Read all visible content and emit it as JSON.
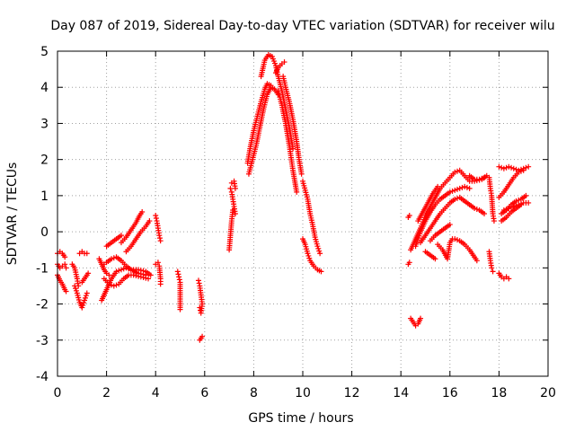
{
  "chart_data": {
    "type": "scatter",
    "title": "Day 087 of 2019, Sidereal Day-to-day VTEC variation (SDTVAR) for receiver wilu",
    "xlabel": "GPS time / hours",
    "ylabel": "SDTVAR / TECUs",
    "xlim": [
      0,
      20
    ],
    "ylim": [
      -4,
      5
    ],
    "xticks": [
      0,
      2,
      4,
      6,
      8,
      10,
      12,
      14,
      16,
      18,
      20
    ],
    "yticks": [
      -4,
      -3,
      -2,
      -1,
      0,
      1,
      2,
      3,
      4,
      5
    ],
    "grid": true,
    "marker": "+",
    "series_color": "#ff0000",
    "segments": [
      [
        [
          0.0,
          -0.6
        ],
        [
          0.1,
          -0.55
        ],
        [
          0.2,
          -0.6
        ],
        [
          0.3,
          -0.7
        ]
      ],
      [
        [
          0.0,
          -0.9
        ],
        [
          0.1,
          -1.0
        ],
        [
          0.2,
          -0.95
        ],
        [
          0.3,
          -0.9
        ],
        [
          0.35,
          -1.0
        ]
      ],
      [
        [
          0.0,
          -1.2
        ],
        [
          0.1,
          -1.35
        ],
        [
          0.2,
          -1.45
        ],
        [
          0.3,
          -1.6
        ],
        [
          0.35,
          -1.65
        ]
      ],
      [
        [
          0.6,
          -0.9
        ],
        [
          0.7,
          -1.0
        ],
        [
          0.8,
          -1.3
        ],
        [
          0.85,
          -1.5
        ]
      ],
      [
        [
          0.7,
          -1.5
        ],
        [
          0.8,
          -1.7
        ],
        [
          0.9,
          -1.95
        ],
        [
          1.0,
          -2.1
        ],
        [
          1.1,
          -1.9
        ],
        [
          1.2,
          -1.7
        ]
      ],
      [
        [
          0.9,
          -0.6
        ],
        [
          1.0,
          -0.55
        ],
        [
          1.1,
          -0.6
        ],
        [
          1.2,
          -0.6
        ]
      ],
      [
        [
          1.0,
          -1.4
        ],
        [
          1.1,
          -1.3
        ],
        [
          1.2,
          -1.2
        ],
        [
          1.25,
          -1.15
        ]
      ],
      [
        [
          1.7,
          -0.75
        ],
        [
          1.8,
          -0.9
        ],
        [
          1.9,
          -1.05
        ],
        [
          2.0,
          -1.15
        ],
        [
          2.1,
          -1.2
        ]
      ],
      [
        [
          1.8,
          -1.9
        ],
        [
          1.9,
          -1.75
        ],
        [
          2.0,
          -1.6
        ],
        [
          2.2,
          -1.3
        ],
        [
          2.4,
          -1.1
        ],
        [
          2.6,
          -1.05
        ],
        [
          2.8,
          -1.0
        ],
        [
          3.0,
          -1.05
        ],
        [
          3.3,
          -1.05
        ],
        [
          3.6,
          -1.1
        ],
        [
          3.8,
          -1.2
        ]
      ],
      [
        [
          1.9,
          -0.9
        ],
        [
          2.0,
          -0.85
        ],
        [
          2.2,
          -0.75
        ],
        [
          2.4,
          -0.7
        ],
        [
          2.6,
          -0.8
        ],
        [
          2.8,
          -0.95
        ],
        [
          3.0,
          -1.05
        ],
        [
          3.3,
          -1.15
        ],
        [
          3.6,
          -1.2
        ]
      ],
      [
        [
          2.0,
          -0.4
        ],
        [
          2.2,
          -0.3
        ],
        [
          2.4,
          -0.2
        ],
        [
          2.6,
          -0.1
        ]
      ],
      [
        [
          1.9,
          -1.3
        ],
        [
          2.1,
          -1.45
        ],
        [
          2.3,
          -1.5
        ],
        [
          2.5,
          -1.45
        ],
        [
          2.7,
          -1.3
        ],
        [
          2.9,
          -1.2
        ],
        [
          3.1,
          -1.2
        ],
        [
          3.4,
          -1.25
        ],
        [
          3.7,
          -1.3
        ]
      ],
      [
        [
          2.6,
          -0.3
        ],
        [
          2.8,
          -0.15
        ],
        [
          3.0,
          0.05
        ],
        [
          3.2,
          0.25
        ],
        [
          3.35,
          0.45
        ],
        [
          3.45,
          0.55
        ]
      ],
      [
        [
          2.8,
          -0.55
        ],
        [
          3.0,
          -0.4
        ],
        [
          3.2,
          -0.2
        ],
        [
          3.4,
          0.0
        ],
        [
          3.6,
          0.15
        ],
        [
          3.75,
          0.3
        ]
      ],
      [
        [
          4.0,
          0.45
        ],
        [
          4.05,
          0.3
        ],
        [
          4.1,
          0.1
        ],
        [
          4.15,
          -0.1
        ],
        [
          4.2,
          -0.25
        ]
      ],
      [
        [
          4.0,
          -0.9
        ],
        [
          4.1,
          -0.85
        ],
        [
          4.15,
          -0.95
        ],
        [
          4.2,
          -1.3
        ],
        [
          4.2,
          -1.45
        ]
      ],
      [
        [
          4.9,
          -1.1
        ],
        [
          4.95,
          -1.25
        ],
        [
          5.0,
          -1.4
        ],
        [
          5.0,
          -2.15
        ]
      ],
      [
        [
          5.75,
          -1.35
        ],
        [
          5.8,
          -1.5
        ],
        [
          5.85,
          -1.75
        ],
        [
          5.9,
          -2.0
        ],
        [
          5.85,
          -2.25
        ],
        [
          5.8,
          -2.1
        ]
      ],
      [
        [
          5.8,
          -3.0
        ],
        [
          5.85,
          -2.95
        ],
        [
          5.9,
          -2.9
        ]
      ],
      [
        [
          7.0,
          -0.5
        ],
        [
          7.05,
          -0.1
        ],
        [
          7.1,
          0.3
        ],
        [
          7.15,
          0.6
        ]
      ],
      [
        [
          7.05,
          1.2
        ],
        [
          7.1,
          1.1
        ],
        [
          7.15,
          0.9
        ],
        [
          7.2,
          0.7
        ],
        [
          7.25,
          0.5
        ]
      ],
      [
        [
          7.1,
          1.35
        ],
        [
          7.2,
          1.4
        ],
        [
          7.25,
          1.2
        ]
      ],
      [
        [
          7.75,
          1.9
        ],
        [
          7.85,
          2.3
        ],
        [
          8.0,
          2.8
        ],
        [
          8.15,
          3.2
        ],
        [
          8.3,
          3.6
        ],
        [
          8.45,
          3.95
        ],
        [
          8.55,
          4.1
        ],
        [
          8.7,
          4.05
        ]
      ],
      [
        [
          7.8,
          1.6
        ],
        [
          7.95,
          2.0
        ],
        [
          8.1,
          2.4
        ],
        [
          8.25,
          2.9
        ],
        [
          8.4,
          3.4
        ],
        [
          8.55,
          3.8
        ],
        [
          8.7,
          4.0
        ],
        [
          8.85,
          3.95
        ],
        [
          9.0,
          3.8
        ]
      ],
      [
        [
          8.3,
          4.3
        ],
        [
          8.45,
          4.75
        ],
        [
          8.6,
          4.9
        ],
        [
          8.75,
          4.85
        ],
        [
          8.9,
          4.6
        ],
        [
          9.0,
          4.3
        ],
        [
          9.15,
          3.9
        ],
        [
          9.3,
          3.4
        ],
        [
          9.45,
          2.9
        ],
        [
          9.6,
          2.3
        ]
      ],
      [
        [
          8.9,
          4.4
        ],
        [
          9.0,
          4.55
        ],
        [
          9.15,
          4.65
        ],
        [
          9.25,
          4.7
        ]
      ],
      [
        [
          9.2,
          4.3
        ],
        [
          9.3,
          4.0
        ],
        [
          9.45,
          3.6
        ],
        [
          9.6,
          3.1
        ],
        [
          9.75,
          2.5
        ],
        [
          9.85,
          2.0
        ],
        [
          9.95,
          1.6
        ]
      ],
      [
        [
          9.0,
          3.9
        ],
        [
          9.15,
          3.5
        ],
        [
          9.3,
          3.0
        ],
        [
          9.45,
          2.4
        ],
        [
          9.6,
          1.7
        ],
        [
          9.75,
          1.1
        ]
      ],
      [
        [
          10.0,
          1.4
        ],
        [
          10.1,
          1.15
        ],
        [
          10.2,
          0.9
        ],
        [
          10.3,
          0.5
        ],
        [
          10.4,
          0.2
        ],
        [
          10.5,
          -0.15
        ],
        [
          10.6,
          -0.4
        ],
        [
          10.7,
          -0.6
        ]
      ],
      [
        [
          10.0,
          -0.2
        ],
        [
          10.1,
          -0.35
        ],
        [
          10.2,
          -0.6
        ],
        [
          10.3,
          -0.8
        ],
        [
          10.45,
          -0.95
        ],
        [
          10.6,
          -1.05
        ],
        [
          10.75,
          -1.1
        ]
      ],
      [
        [
          14.3,
          0.4
        ],
        [
          14.35,
          0.45
        ]
      ],
      [
        [
          14.3,
          -0.9
        ],
        [
          14.35,
          -0.85
        ]
      ],
      [
        [
          14.4,
          -2.4
        ],
        [
          14.5,
          -2.5
        ],
        [
          14.6,
          -2.6
        ],
        [
          14.7,
          -2.55
        ],
        [
          14.8,
          -2.4
        ]
      ],
      [
        [
          14.4,
          -0.5
        ],
        [
          14.6,
          -0.2
        ],
        [
          14.8,
          0.1
        ],
        [
          15.0,
          0.45
        ],
        [
          15.2,
          0.7
        ],
        [
          15.4,
          0.95
        ],
        [
          15.6,
          1.2
        ],
        [
          15.8,
          1.35
        ],
        [
          16.0,
          1.5
        ],
        [
          16.2,
          1.65
        ],
        [
          16.4,
          1.7
        ],
        [
          16.6,
          1.55
        ],
        [
          16.8,
          1.4
        ],
        [
          17.0,
          1.4
        ],
        [
          17.3,
          1.45
        ],
        [
          17.5,
          1.55
        ]
      ],
      [
        [
          14.6,
          -0.4
        ],
        [
          14.8,
          0.0
        ],
        [
          15.0,
          0.3
        ],
        [
          15.2,
          0.55
        ],
        [
          15.4,
          0.75
        ],
        [
          15.6,
          0.9
        ],
        [
          15.8,
          1.0
        ],
        [
          16.0,
          1.1
        ],
        [
          16.2,
          1.15
        ],
        [
          16.4,
          1.2
        ],
        [
          16.6,
          1.25
        ],
        [
          16.8,
          1.2
        ]
      ],
      [
        [
          14.8,
          -0.3
        ],
        [
          15.0,
          -0.1
        ],
        [
          15.2,
          0.1
        ],
        [
          15.4,
          0.3
        ],
        [
          15.6,
          0.5
        ],
        [
          15.8,
          0.65
        ],
        [
          16.0,
          0.8
        ],
        [
          16.2,
          0.9
        ],
        [
          16.4,
          0.95
        ],
        [
          16.6,
          0.85
        ],
        [
          16.8,
          0.75
        ],
        [
          17.0,
          0.65
        ],
        [
          17.2,
          0.6
        ],
        [
          17.4,
          0.5
        ]
      ],
      [
        [
          14.7,
          0.3
        ],
        [
          14.9,
          0.55
        ],
        [
          15.1,
          0.8
        ],
        [
          15.3,
          1.05
        ],
        [
          15.5,
          1.25
        ]
      ],
      [
        [
          15.2,
          -0.25
        ],
        [
          15.4,
          -0.1
        ],
        [
          15.6,
          0.0
        ],
        [
          15.8,
          0.1
        ],
        [
          16.0,
          0.2
        ]
      ],
      [
        [
          15.0,
          -0.55
        ],
        [
          15.2,
          -0.65
        ],
        [
          15.4,
          -0.75
        ]
      ],
      [
        [
          15.5,
          -0.35
        ],
        [
          15.7,
          -0.5
        ],
        [
          15.9,
          -0.75
        ],
        [
          16.0,
          -0.3
        ],
        [
          16.1,
          -0.2
        ],
        [
          16.2,
          -0.2
        ],
        [
          16.4,
          -0.25
        ],
        [
          16.6,
          -0.35
        ],
        [
          16.8,
          -0.5
        ],
        [
          17.0,
          -0.7
        ],
        [
          17.1,
          -0.8
        ]
      ],
      [
        [
          16.8,
          1.55
        ],
        [
          17.0,
          1.45
        ],
        [
          17.2,
          1.45
        ],
        [
          17.4,
          1.5
        ]
      ],
      [
        [
          17.6,
          1.5
        ],
        [
          17.65,
          1.2
        ],
        [
          17.7,
          1.0
        ],
        [
          17.75,
          0.5
        ],
        [
          17.8,
          0.3
        ]
      ],
      [
        [
          17.6,
          -0.55
        ],
        [
          17.65,
          -0.8
        ],
        [
          17.7,
          -1.0
        ],
        [
          17.75,
          -1.1
        ]
      ],
      [
        [
          18.0,
          1.8
        ],
        [
          18.2,
          1.75
        ],
        [
          18.4,
          1.8
        ],
        [
          18.6,
          1.75
        ],
        [
          18.8,
          1.7
        ],
        [
          19.0,
          1.75
        ],
        [
          19.2,
          1.8
        ]
      ],
      [
        [
          18.0,
          0.95
        ],
        [
          18.2,
          1.1
        ],
        [
          18.4,
          1.3
        ],
        [
          18.6,
          1.5
        ],
        [
          18.8,
          1.65
        ],
        [
          19.0,
          1.7
        ]
      ],
      [
        [
          18.1,
          0.5
        ],
        [
          18.3,
          0.6
        ],
        [
          18.5,
          0.75
        ],
        [
          18.7,
          0.85
        ],
        [
          18.9,
          0.9
        ],
        [
          19.1,
          1.0
        ]
      ],
      [
        [
          18.1,
          0.3
        ],
        [
          18.3,
          0.4
        ],
        [
          18.5,
          0.55
        ],
        [
          18.7,
          0.65
        ],
        [
          18.9,
          0.75
        ]
      ],
      [
        [
          18.2,
          0.6
        ],
        [
          18.4,
          0.65
        ],
        [
          18.6,
          0.7
        ],
        [
          18.8,
          0.75
        ],
        [
          19.0,
          0.8
        ],
        [
          19.2,
          0.8
        ]
      ],
      [
        [
          18.0,
          -1.15
        ],
        [
          18.1,
          -1.25
        ],
        [
          18.2,
          -1.3
        ],
        [
          18.3,
          -1.25
        ],
        [
          18.4,
          -1.3
        ]
      ]
    ]
  }
}
